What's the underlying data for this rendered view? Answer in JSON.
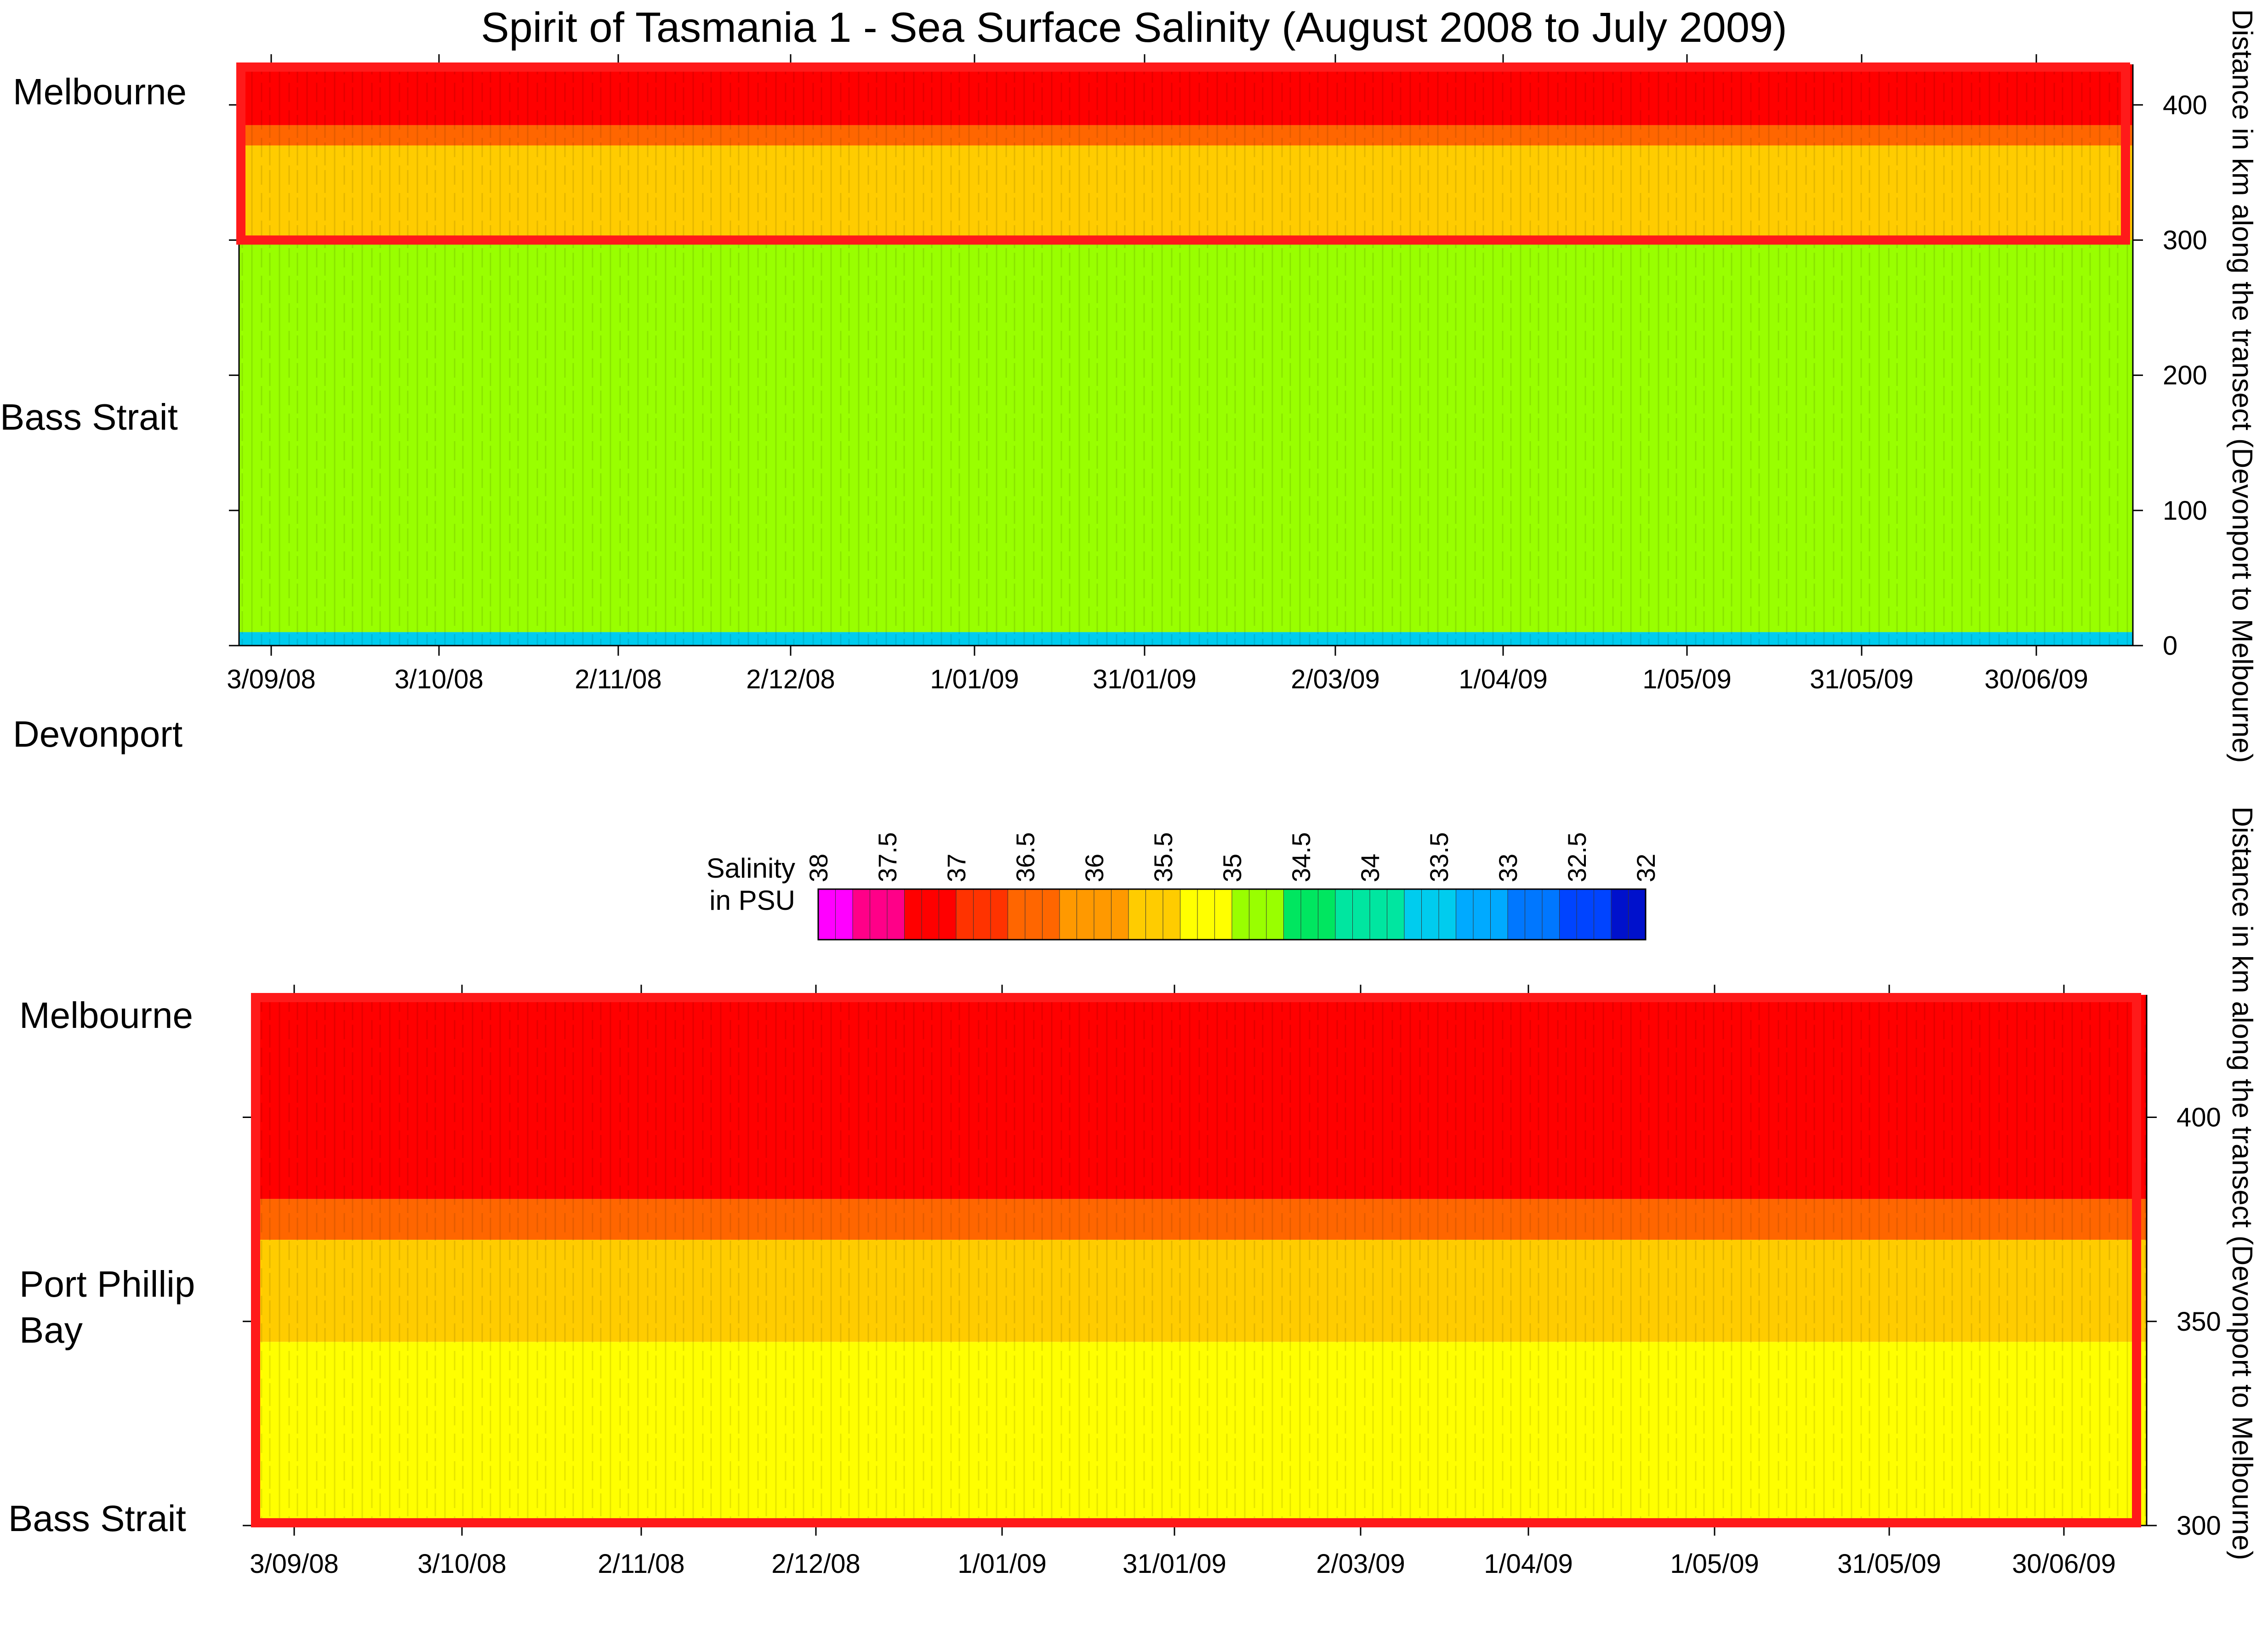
{
  "title": "Spirit of Tasmania 1 - Sea Surface Salinity (August 2008 to July 2009)",
  "colors": {
    "highlight_box": "#ff1a1a",
    "scale": [
      "#ff00ff",
      "#ff0088",
      "#ff0000",
      "#ff3300",
      "#ff6600",
      "#ff9900",
      "#ffcc00",
      "#ffff00",
      "#99ff00",
      "#00e660",
      "#00e6a0",
      "#00ccee",
      "#00aaff",
      "#0077ff",
      "#0044ff",
      "#0011cc"
    ]
  },
  "chart_data": [
    {
      "id": "full-transect",
      "type": "heatmap",
      "title": "Spirit of Tasmania 1 - Sea Surface Salinity (August 2008 to July 2009)",
      "ylabel": "Distance in km along the transect (Devonport to Melbourne)",
      "ylim": [
        0,
        430
      ],
      "y_ticks": [
        0,
        100,
        200,
        300,
        400
      ],
      "x_ticks": [
        "3/09/08",
        "3/10/08",
        "2/11/08",
        "2/12/08",
        "1/01/09",
        "31/01/09",
        "2/03/09",
        "1/04/09",
        "1/05/09",
        "31/05/09",
        "30/06/09"
      ],
      "place_labels": [
        {
          "label": "Melbourne",
          "km": 430
        },
        {
          "label": "Bass Strait",
          "km": 240
        },
        {
          "label": "Devonport",
          "km": 15
        }
      ],
      "highlight_range_km": [
        300,
        430
      ],
      "value_bands": [
        {
          "km_range": [
            0,
            10
          ],
          "salinity_psu": 33.5
        },
        {
          "km_range": [
            10,
            300
          ],
          "salinity_psu": 35.0
        },
        {
          "km_range": [
            300,
            370
          ],
          "salinity_psu": 35.5
        },
        {
          "km_range": [
            370,
            385
          ],
          "salinity_psu": 36.5
        },
        {
          "km_range": [
            385,
            430
          ],
          "salinity_psu": 37.2
        }
      ]
    },
    {
      "id": "zoom-melbourne",
      "type": "heatmap",
      "ylabel": "Distance in km along the transect (Devonport to Melbourne)",
      "ylim": [
        300,
        430
      ],
      "y_ticks": [
        300,
        350,
        400
      ],
      "x_ticks": [
        "3/09/08",
        "3/10/08",
        "2/11/08",
        "2/12/08",
        "1/01/09",
        "31/01/09",
        "2/03/09",
        "1/04/09",
        "1/05/09",
        "31/05/09",
        "30/06/09"
      ],
      "place_labels": [
        {
          "label": "Melbourne",
          "km": 428
        },
        {
          "label": "Port Phillip Bay",
          "km": 372
        },
        {
          "label": "Bass Strait",
          "km": 310
        }
      ],
      "value_bands": [
        {
          "km_range": [
            300,
            345
          ],
          "salinity_psu": 35.2
        },
        {
          "km_range": [
            345,
            370
          ],
          "salinity_psu": 35.7
        },
        {
          "km_range": [
            370,
            380
          ],
          "salinity_psu": 36.5
        },
        {
          "km_range": [
            380,
            430
          ],
          "salinity_psu": 37.2
        }
      ]
    }
  ],
  "legend": {
    "label_line1": "Salinity",
    "label_line2": "in PSU",
    "ticks": [
      "38",
      "37.5",
      "37",
      "36.5",
      "36",
      "35.5",
      "35",
      "34.5",
      "34",
      "33.5",
      "33",
      "32.5",
      "32"
    ],
    "range": [
      38,
      32
    ]
  }
}
